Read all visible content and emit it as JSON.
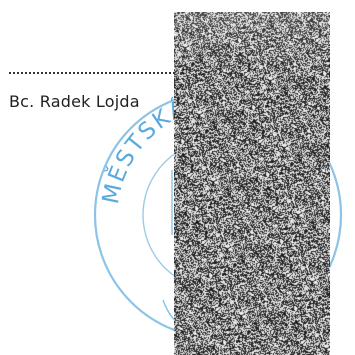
{
  "signature_block": {
    "signer_name": "Bc. Radek Lojda"
  },
  "stamp": {
    "text": "MĚSTSKÁ",
    "color": "#5aa9dc"
  },
  "redaction": {
    "type": "noise-pattern"
  }
}
